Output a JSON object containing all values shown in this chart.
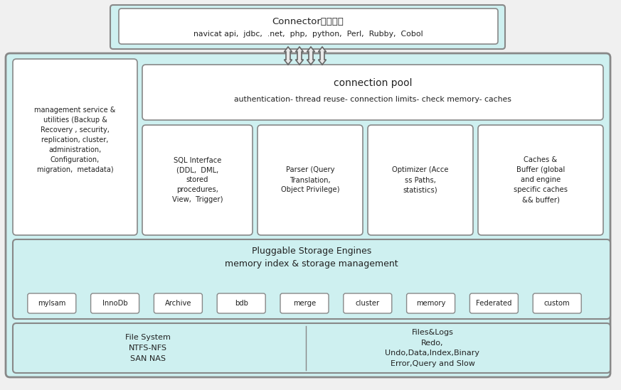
{
  "fig_bg": "#f0f0f0",
  "outer_bg": "#e8f8f8",
  "cyan_bg": "#cef0f0",
  "white_box": "#ffffff",
  "border_color": "#888888",
  "border_dark": "#555555",
  "text_color": "#222222",
  "connector_title": "Connector（连接）",
  "connector_sub": "navicat api,  jdbc,  .net,  php,  python,  Perl,  Rubby,  Cobol",
  "conn_pool_title": "connection pool",
  "conn_pool_sub": "authentication- thread reuse- connection limits- check memory- caches",
  "mgmt_text": "management service &\nutilities (Backup &\nRecovery , security,\nreplication, cluster,\nadministration,\nConfiguration,\nmigration,  metadata)",
  "sql_text": "SQL Interface\n(DDL,  DML,\nstored\nprocedures,\nView,  Trigger)",
  "parser_text": "Parser (Query\nTranslation,\nObject Privilege)",
  "optimizer_text": "Optimizer (Acce\nss Paths,\nstatistics)",
  "caches_text": "Caches &\nBuffer (global\nand engine\nspecific caches\n&& buffer)",
  "storage_title": "Pluggable Storage Engines\nmemory index & storage management",
  "engines": [
    "myIsam",
    "InnoDb",
    "Archive",
    "bdb",
    "merge",
    "cluster",
    "memory",
    "Federated",
    "custom"
  ],
  "fs_text": "File System\nNTFS-NFS\nSAN NAS",
  "files_text": "Files&Logs\nRedo,\nUndo,Data,Index,Binary\nError,Query and Slow",
  "arrow_fill": "#e8e8e8",
  "arrow_edge": "#666666"
}
